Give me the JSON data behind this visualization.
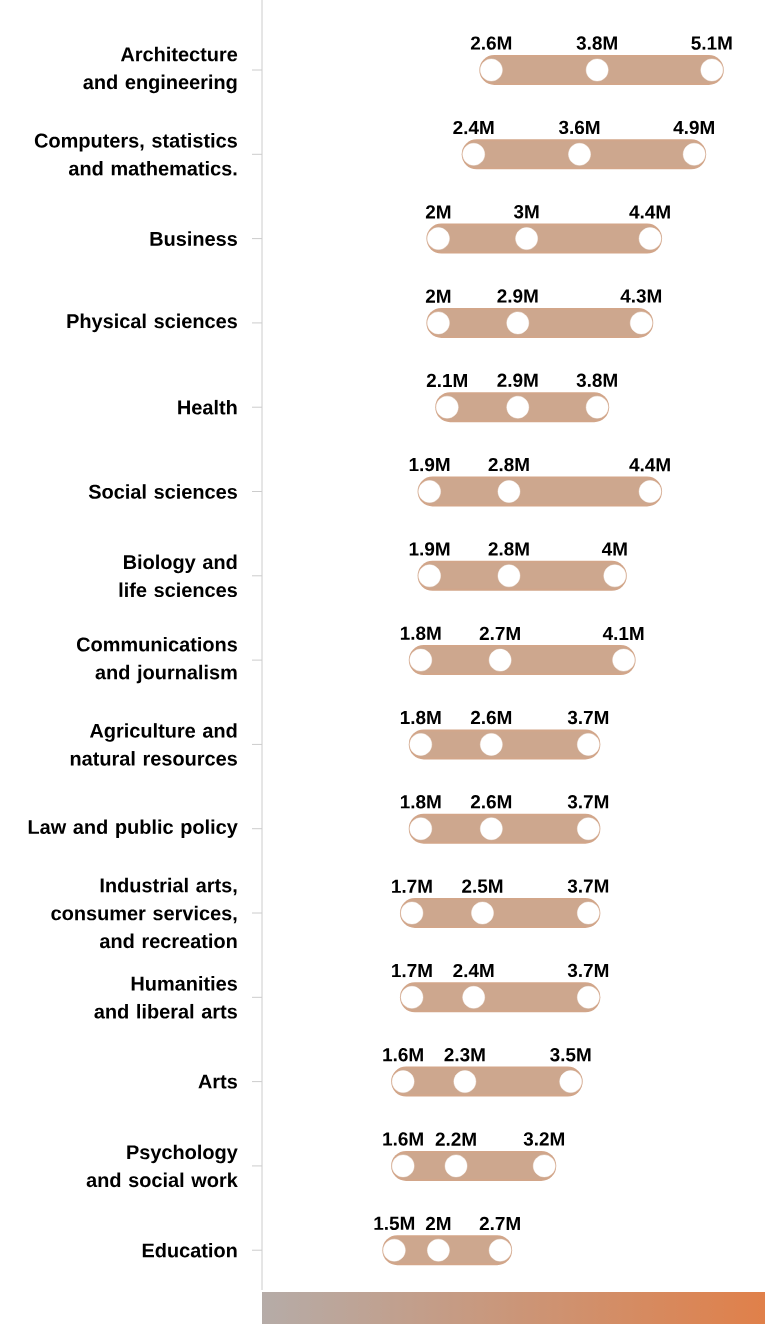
{
  "chart_data": {
    "type": "scatter",
    "orientation": "horizontal",
    "tick_labels": "y",
    "categories": [
      "Architecture and engineering",
      "Computers, statistics and mathematics.",
      "Business",
      "Physical sciences",
      "Health",
      "Social sciences",
      "Biology and life sciences",
      "Communications and journalism",
      "Agriculture and natural resources",
      "Law and public policy",
      "Industrial arts, consumer services, and recreation",
      "Humanities and liberal arts",
      "Arts",
      "Psychology and social work",
      "Education"
    ],
    "series": [
      {
        "color": "#ffffff",
        "values": [
          2.6,
          2.4,
          2,
          2,
          2.1,
          1.9,
          1.9,
          1.8,
          1.8,
          1.8,
          1.7,
          1.7,
          1.6,
          1.6,
          1.5
        ],
        "value_labels": [
          "2.6M",
          "2.4M",
          "2M",
          "2M",
          "2.1M",
          "1.9M",
          "1.9M",
          "1.8M",
          "1.8M",
          "1.8M",
          "1.7M",
          "1.7M",
          "1.6M",
          "1.6M",
          "1.5M"
        ]
      },
      {
        "color": "#ffffff",
        "values": [
          3.8,
          3.6,
          3,
          2.9,
          2.9,
          2.8,
          2.8,
          2.7,
          2.6,
          2.6,
          2.5,
          2.4,
          2.3,
          2.2,
          2
        ],
        "value_labels": [
          "3.8M",
          "3.6M",
          "3M",
          "2.9M",
          "2.9M",
          "2.8M",
          "2.8M",
          "2.7M",
          "2.6M",
          "2.6M",
          "2.5M",
          "2.4M",
          "2.3M",
          "2.2M",
          "2M"
        ]
      },
      {
        "color": "#ffffff",
        "values": [
          5.1,
          4.9,
          4.4,
          4.3,
          3.8,
          4.4,
          4,
          4.1,
          3.7,
          3.7,
          3.7,
          3.7,
          3.5,
          3.2,
          2.7
        ],
        "value_labels": [
          "5.1M",
          "4.9M",
          "4.4M",
          "4.3M",
          "3.8M",
          "4.4M",
          "4M",
          "4.1M",
          "3.7M",
          "3.7M",
          "3.7M",
          "3.7M",
          "3.5M",
          "3.2M",
          "2.7M"
        ]
      }
    ]
  }
}
